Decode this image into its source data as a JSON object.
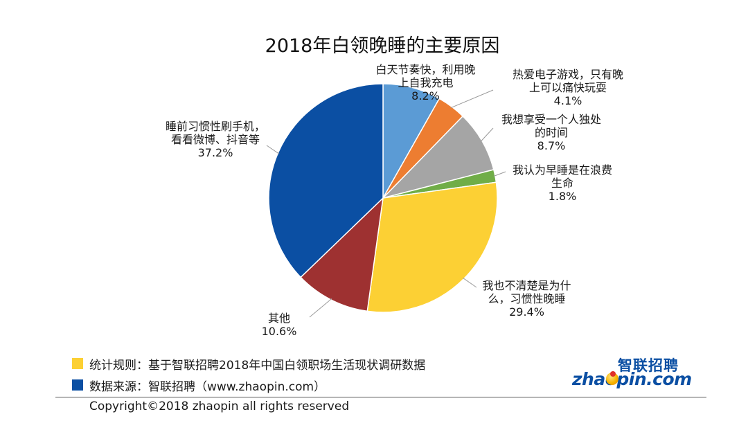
{
  "chart_data": {
    "type": "pie",
    "title": "2018年白领晚睡的主要原因",
    "slices": [
      {
        "label": "白天节奏快，利用晚上自我充电",
        "value": 8.2,
        "display": "8.2%",
        "color": "#5b9bd5"
      },
      {
        "label": "热爱电子游戏，只有晚上可以痛快玩耍",
        "value": 4.1,
        "display": "4.1%",
        "color": "#ed7d31"
      },
      {
        "label": "我想享受一个人独处的时间",
        "value": 8.7,
        "display": "8.7%",
        "color": "#a5a5a5"
      },
      {
        "label": "我认为早睡是在浪费生命",
        "value": 1.8,
        "display": "1.8%",
        "color": "#70ad47"
      },
      {
        "label": "我也不清楚是为什么，习惯性晚睡",
        "value": 29.4,
        "display": "29.4%",
        "color": "#fcd034"
      },
      {
        "label": "其他",
        "value": 10.6,
        "display": "10.6%",
        "color": "#9e3131"
      },
      {
        "label": "睡前习惯性刷手机，看看微博、抖音等",
        "value": 37.2,
        "display": "37.2%",
        "color": "#0b4fa3"
      }
    ],
    "label_lines": [
      [
        "白天节奏快，利用晚",
        "上自我充电"
      ],
      [
        "热爱电子游戏，只有晚",
        "上可以痛快玩耍"
      ],
      [
        "我想享受一个人独处",
        "的时间"
      ],
      [
        "我认为早睡是在浪费",
        "生命"
      ],
      [
        "我也不清楚是为什",
        "么，习惯性晚睡"
      ],
      [
        "其他"
      ],
      [
        "睡前习惯性刷手机，",
        "看看微博、抖音等"
      ]
    ],
    "start": "12 o'clock",
    "direction": "clockwise"
  },
  "legend": [
    {
      "text": "统计规则：基于智联招聘2018年中国白领职场生活现状调研数据",
      "color": "#fcd034"
    },
    {
      "text": "数据来源：智联招聘（www.zhaopin.com）",
      "color": "#0b4fa3"
    }
  ],
  "copyright": "Copyright©2018 zhaopin all rights reserved",
  "logo": {
    "cn": "智联招聘",
    "en": "zhaopin.com"
  }
}
